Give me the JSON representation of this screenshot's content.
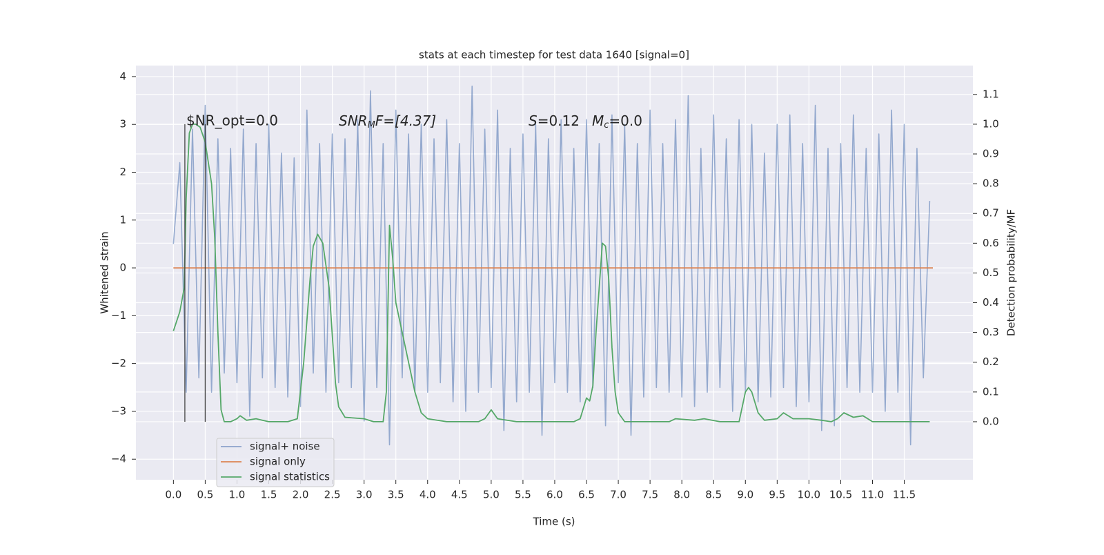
{
  "chart_data": {
    "type": "line",
    "title": "stats at each timestep for test data 1640 [signal=0]",
    "x_label": "Time (s)",
    "y_label": "Whitened strain",
    "y2_label": "Detection probability/MF",
    "xlim": [
      -0.59,
      12.58
    ],
    "ylim": [
      -4.43,
      4.23
    ],
    "y2lim": [
      -0.195,
      1.197
    ],
    "xticks": [
      {
        "value": 0,
        "label": "0.0"
      },
      0.5,
      {
        "value": 1,
        "label": "1.0"
      },
      1.5,
      {
        "value": 2,
        "label": "2.0"
      },
      2.5,
      {
        "value": 3,
        "label": "3.0"
      },
      3.5,
      {
        "value": 4,
        "label": "4.0"
      },
      4.5,
      {
        "value": 5,
        "label": "5.0"
      },
      5.5,
      {
        "value": 6,
        "label": "6.0"
      },
      6.5,
      {
        "value": 7,
        "label": "7.0"
      },
      7.5,
      {
        "value": 8,
        "label": "8.0"
      },
      8.5,
      {
        "value": 9,
        "label": "9.0"
      },
      9.5,
      {
        "value": 10,
        "label": "10.0"
      },
      10.5,
      {
        "value": 11,
        "label": "11.0"
      },
      11.5
    ],
    "yticks": [
      {
        "value": -4,
        "label": "−4"
      },
      {
        "value": -3,
        "label": "−3"
      },
      {
        "value": -2,
        "label": "−2"
      },
      {
        "value": -1,
        "label": "−1"
      },
      0,
      1,
      2,
      3,
      4
    ],
    "y2ticks": [
      {
        "value": 0,
        "label": "0.0"
      },
      0.1,
      0.2,
      0.3,
      0.4,
      0.5,
      0.6,
      0.7,
      0.8,
      0.9,
      {
        "value": 1,
        "label": "1.0"
      },
      1.1
    ],
    "grid": true,
    "series": [
      {
        "name": "signal+ noise",
        "color": "#4c72b0",
        "x": [
          0.0,
          0.1,
          0.2,
          0.3,
          0.4,
          0.5,
          0.6,
          0.7,
          0.8,
          0.9,
          1.0,
          1.1,
          1.2,
          1.3,
          1.4,
          1.5,
          1.6,
          1.7,
          1.8,
          1.9,
          2.0,
          2.1,
          2.2,
          2.3,
          2.4,
          2.5,
          2.6,
          2.7,
          2.8,
          2.9,
          3.0,
          3.1,
          3.2,
          3.3,
          3.4,
          3.5,
          3.6,
          3.7,
          3.8,
          3.9,
          4.0,
          4.1,
          4.2,
          4.3,
          4.4,
          4.5,
          4.6,
          4.7,
          4.8,
          4.9,
          5.0,
          5.1,
          5.2,
          5.3,
          5.4,
          5.5,
          5.6,
          5.7,
          5.8,
          5.9,
          6.0,
          6.1,
          6.2,
          6.3,
          6.4,
          6.5,
          6.6,
          6.7,
          6.8,
          6.9,
          7.0,
          7.1,
          7.2,
          7.3,
          7.4,
          7.5,
          7.6,
          7.7,
          7.8,
          7.9,
          8.0,
          8.1,
          8.2,
          8.3,
          8.4,
          8.5,
          8.6,
          8.7,
          8.8,
          8.9,
          9.0,
          9.1,
          9.2,
          9.3,
          9.4,
          9.5,
          9.6,
          9.7,
          9.8,
          9.9,
          10.0,
          10.1,
          10.2,
          10.3,
          10.4,
          10.5,
          10.6,
          10.7,
          10.8,
          10.9,
          11.0,
          11.1,
          11.2,
          11.3,
          11.4,
          11.5,
          11.6,
          11.7,
          11.8,
          11.9
        ],
        "values": [
          0.5,
          2.2,
          -2.6,
          2.9,
          -2.3,
          3.4,
          -2.6,
          2.7,
          -2.2,
          2.5,
          -2.4,
          2.9,
          -3.1,
          2.6,
          -2.3,
          3.0,
          -2.5,
          2.4,
          -2.7,
          2.3,
          -2.9,
          3.3,
          -2.2,
          2.6,
          -2.6,
          2.8,
          -2.4,
          2.7,
          -2.5,
          3.1,
          -3.2,
          3.7,
          -2.5,
          2.6,
          -3.7,
          3.3,
          -2.3,
          2.8,
          -2.6,
          3.0,
          -2.6,
          2.7,
          -2.4,
          3.1,
          -2.8,
          2.6,
          -3.0,
          3.8,
          -2.6,
          2.9,
          -2.5,
          3.3,
          -3.4,
          2.5,
          -2.8,
          2.8,
          -2.6,
          3.0,
          -3.5,
          2.7,
          -2.4,
          3.1,
          -2.6,
          2.5,
          -2.8,
          3.1,
          -2.5,
          2.6,
          -3.3,
          3.2,
          -2.4,
          3.0,
          -3.5,
          2.6,
          -2.7,
          3.3,
          -2.5,
          2.6,
          -2.6,
          3.1,
          -2.7,
          3.6,
          -2.9,
          2.5,
          -2.6,
          3.2,
          -2.5,
          2.7,
          -3.0,
          3.1,
          -2.6,
          3.0,
          -2.8,
          2.4,
          -2.7,
          3.0,
          -2.5,
          3.2,
          -2.9,
          2.6,
          -2.8,
          3.4,
          -3.4,
          2.5,
          -3.3,
          2.6,
          -2.5,
          3.2,
          -2.6,
          2.5,
          -2.6,
          2.8,
          -3.0,
          3.3,
          -2.6,
          3.0,
          -3.7,
          2.5,
          -2.3,
          1.4
        ]
      },
      {
        "name": "signal only",
        "color": "#dd8452",
        "x": [
          0.0,
          11.95
        ],
        "values": [
          0,
          0
        ]
      },
      {
        "name": "signal statistics",
        "color": "#55a868",
        "axis": "y2",
        "x": [
          0,
          0.1,
          0.17,
          0.2,
          0.25,
          0.3,
          0.35,
          0.42,
          0.5,
          0.6,
          0.65,
          0.7,
          0.75,
          0.8,
          0.9,
          1.0,
          1.05,
          1.15,
          1.3,
          1.5,
          1.8,
          1.95,
          2.05,
          2.15,
          2.2,
          2.27,
          2.35,
          2.45,
          2.55,
          2.6,
          2.7,
          3.0,
          3.15,
          3.3,
          3.35,
          3.4,
          3.45,
          3.5,
          3.6,
          3.7,
          3.8,
          3.9,
          4.0,
          4.3,
          4.8,
          4.9,
          5.0,
          5.1,
          5.4,
          6.3,
          6.4,
          6.5,
          6.55,
          6.6,
          6.65,
          6.7,
          6.75,
          6.8,
          6.85,
          6.9,
          6.95,
          7.0,
          7.1,
          7.8,
          7.9,
          8.2,
          8.35,
          8.6,
          8.9,
          8.95,
          9.0,
          9.05,
          9.1,
          9.2,
          9.3,
          9.5,
          9.6,
          9.75,
          10.0,
          10.2,
          10.35,
          10.45,
          10.55,
          10.7,
          10.85,
          11.0,
          11.2,
          11.5,
          11.9
        ],
        "values": [
          0.305,
          0.37,
          0.45,
          0.75,
          0.97,
          1.0,
          1.0,
          0.99,
          0.94,
          0.8,
          0.62,
          0.3,
          0.04,
          0.0,
          0.0,
          0.01,
          0.02,
          0.005,
          0.01,
          0.0,
          0.0,
          0.01,
          0.2,
          0.48,
          0.59,
          0.63,
          0.6,
          0.45,
          0.13,
          0.05,
          0.015,
          0.01,
          0.0,
          0.0,
          0.1,
          0.66,
          0.55,
          0.4,
          0.3,
          0.2,
          0.1,
          0.03,
          0.01,
          0.0,
          0.0,
          0.01,
          0.04,
          0.01,
          0.0,
          0.0,
          0.01,
          0.08,
          0.07,
          0.12,
          0.3,
          0.45,
          0.6,
          0.59,
          0.48,
          0.25,
          0.1,
          0.03,
          0.0,
          0.0,
          0.01,
          0.005,
          0.01,
          0.0,
          0.0,
          0.05,
          0.1,
          0.115,
          0.1,
          0.03,
          0.005,
          0.01,
          0.03,
          0.01,
          0.01,
          0.005,
          0.0,
          0.01,
          0.03,
          0.015,
          0.02,
          0.0,
          0.0,
          0.0,
          0.0
        ]
      }
    ],
    "vlines": [
      {
        "x": 0.18,
        "y2": [
          0,
          1
        ]
      },
      {
        "x": 0.5,
        "y2": [
          0,
          1
        ]
      }
    ],
    "annotations": [
      [
        "$NR_opt=0.0"
      ],
      [
        "SNR",
        "M",
        "F=[4.37]"
      ],
      [
        "S",
        "=0.12"
      ],
      [
        "M",
        "c",
        "=0.0"
      ]
    ],
    "legend": "lower left"
  }
}
